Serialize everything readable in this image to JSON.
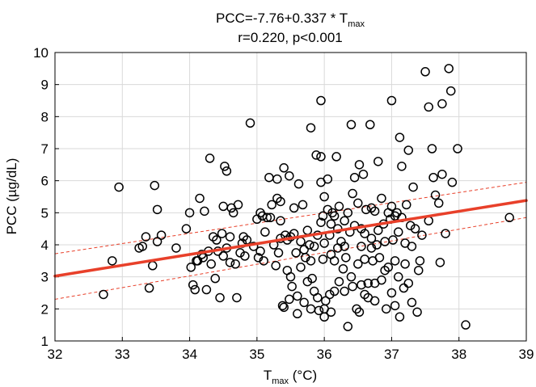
{
  "chart_data": {
    "type": "scatter",
    "title_prefix": "PCC=-7.76+0.337 * T",
    "title_subscript": "max",
    "subtitle": "r=0.220, p<0.001",
    "xlabel_main": "T",
    "xlabel_subscript": "max",
    "xlabel_unit": " (°C)",
    "ylabel": "PCC (µg/dL)",
    "xlim": [
      32,
      39
    ],
    "ylim": [
      1,
      10
    ],
    "xticks": [
      "32",
      "33",
      "34",
      "35",
      "36",
      "37",
      "38",
      "39"
    ],
    "yticks": [
      "1",
      "2",
      "3",
      "4",
      "5",
      "6",
      "7",
      "8",
      "9",
      "10"
    ],
    "grid": true,
    "regression": {
      "intercept": -7.76,
      "slope": 0.337,
      "color": "#e8402a"
    },
    "ci_band": {
      "upper_x": [
        32,
        39
      ],
      "upper_y": [
        3.72,
        5.95
      ],
      "lower_x": [
        32,
        39
      ],
      "lower_y": [
        2.3,
        4.85
      ],
      "color": "#e8402a"
    },
    "marker_color": "#000000",
    "points": [
      [
        32.72,
        2.45
      ],
      [
        32.85,
        3.5
      ],
      [
        32.95,
        5.8
      ],
      [
        33.25,
        3.9
      ],
      [
        33.3,
        3.95
      ],
      [
        33.35,
        4.25
      ],
      [
        33.4,
        2.65
      ],
      [
        33.45,
        3.35
      ],
      [
        33.48,
        5.85
      ],
      [
        33.52,
        4.1
      ],
      [
        33.52,
        5.1
      ],
      [
        33.58,
        4.3
      ],
      [
        33.8,
        3.9
      ],
      [
        33.95,
        4.5
      ],
      [
        34.0,
        5.0
      ],
      [
        34.02,
        3.3
      ],
      [
        34.05,
        2.75
      ],
      [
        34.08,
        2.6
      ],
      [
        34.1,
        3.5
      ],
      [
        34.12,
        3.5
      ],
      [
        34.15,
        5.45
      ],
      [
        34.18,
        3.7
      ],
      [
        34.2,
        3.6
      ],
      [
        34.22,
        5.05
      ],
      [
        34.25,
        2.6
      ],
      [
        34.28,
        3.8
      ],
      [
        34.3,
        6.7
      ],
      [
        34.32,
        3.4
      ],
      [
        34.35,
        4.25
      ],
      [
        34.38,
        2.95
      ],
      [
        34.4,
        4.15
      ],
      [
        34.42,
        3.8
      ],
      [
        34.45,
        2.35
      ],
      [
        34.48,
        4.35
      ],
      [
        34.5,
        3.65
      ],
      [
        34.5,
        5.2
      ],
      [
        34.52,
        6.45
      ],
      [
        34.55,
        6.3
      ],
      [
        34.55,
        3.9
      ],
      [
        34.6,
        4.25
      ],
      [
        34.6,
        3.45
      ],
      [
        34.62,
        5.15
      ],
      [
        34.65,
        5.0
      ],
      [
        34.68,
        3.4
      ],
      [
        34.7,
        2.35
      ],
      [
        34.72,
        5.25
      ],
      [
        34.75,
        3.75
      ],
      [
        34.78,
        4.05
      ],
      [
        34.8,
        4.25
      ],
      [
        34.82,
        3.65
      ],
      [
        34.85,
        4.15
      ],
      [
        34.9,
        7.8
      ],
      [
        34.95,
        3.95
      ],
      [
        35.0,
        4.8
      ],
      [
        35.02,
        3.6
      ],
      [
        35.05,
        5.0
      ],
      [
        35.05,
        3.8
      ],
      [
        35.08,
        4.9
      ],
      [
        35.1,
        3.5
      ],
      [
        35.12,
        4.4
      ],
      [
        35.15,
        4.85
      ],
      [
        35.18,
        6.1
      ],
      [
        35.2,
        4.85
      ],
      [
        35.22,
        5.25
      ],
      [
        35.25,
        4.0
      ],
      [
        35.28,
        3.35
      ],
      [
        35.3,
        6.05
      ],
      [
        35.3,
        5.45
      ],
      [
        35.32,
        3.75
      ],
      [
        35.35,
        5.35
      ],
      [
        35.35,
        4.2
      ],
      [
        35.38,
        2.1
      ],
      [
        35.4,
        6.4
      ],
      [
        35.4,
        2.05
      ],
      [
        35.42,
        4.3
      ],
      [
        35.45,
        4.15
      ],
      [
        35.45,
        3.2
      ],
      [
        35.48,
        6.15
      ],
      [
        35.48,
        2.3
      ],
      [
        35.5,
        4.25
      ],
      [
        35.5,
        3.0
      ],
      [
        35.52,
        2.7
      ],
      [
        35.55,
        4.35
      ],
      [
        35.58,
        3.75
      ],
      [
        35.6,
        1.85
      ],
      [
        35.6,
        2.4
      ],
      [
        35.62,
        5.9
      ],
      [
        35.65,
        4.1
      ],
      [
        35.65,
        3.3
      ],
      [
        35.68,
        5.25
      ],
      [
        35.7,
        3.85
      ],
      [
        35.7,
        2.2
      ],
      [
        35.72,
        3.6
      ],
      [
        35.75,
        4.45
      ],
      [
        35.75,
        2.85
      ],
      [
        35.78,
        4.0
      ],
      [
        35.8,
        2.0
      ],
      [
        35.8,
        3.5
      ],
      [
        35.8,
        7.65
      ],
      [
        35.82,
        2.95
      ],
      [
        35.85,
        3.95
      ],
      [
        35.85,
        2.55
      ],
      [
        35.88,
        6.8
      ],
      [
        35.9,
        4.3
      ],
      [
        35.9,
        2.35
      ],
      [
        35.92,
        1.95
      ],
      [
        35.95,
        8.5
      ],
      [
        35.95,
        6.75
      ],
      [
        35.95,
        5.95
      ],
      [
        35.98,
        4.9
      ],
      [
        35.98,
        3.55
      ],
      [
        36.0,
        5.5
      ],
      [
        36.0,
        2.0
      ],
      [
        36.0,
        1.75
      ],
      [
        36.02,
        2.25
      ],
      [
        36.05,
        6.05
      ],
      [
        36.05,
        5.1
      ],
      [
        36.08,
        4.3
      ],
      [
        36.08,
        2.45
      ],
      [
        36.1,
        3.7
      ],
      [
        36.1,
        1.9
      ],
      [
        36.12,
        5.0
      ],
      [
        36.15,
        4.9
      ],
      [
        36.15,
        3.5
      ],
      [
        36.15,
        2.55
      ],
      [
        36.18,
        6.75
      ],
      [
        36.2,
        4.5
      ],
      [
        36.2,
        3.9
      ],
      [
        36.22,
        5.2
      ],
      [
        36.22,
        2.85
      ],
      [
        36.25,
        4.1
      ],
      [
        36.28,
        3.25
      ],
      [
        36.3,
        4.75
      ],
      [
        36.3,
        2.55
      ],
      [
        36.32,
        3.6
      ],
      [
        36.35,
        5.0
      ],
      [
        36.35,
        1.45
      ],
      [
        36.38,
        4.4
      ],
      [
        36.4,
        7.75
      ],
      [
        36.4,
        3.0
      ],
      [
        36.42,
        2.7
      ],
      [
        36.42,
        5.6
      ],
      [
        36.45,
        6.1
      ],
      [
        36.45,
        4.6
      ],
      [
        36.48,
        2.0
      ],
      [
        36.5,
        5.3
      ],
      [
        36.5,
        3.4
      ],
      [
        36.52,
        6.5
      ],
      [
        36.52,
        1.9
      ],
      [
        36.55,
        4.5
      ],
      [
        36.55,
        2.75
      ],
      [
        36.58,
        6.2
      ],
      [
        36.6,
        4.35
      ],
      [
        36.6,
        3.55
      ],
      [
        36.6,
        2.45
      ],
      [
        36.62,
        5.1
      ],
      [
        36.65,
        2.8
      ],
      [
        36.65,
        2.35
      ],
      [
        36.68,
        7.75
      ],
      [
        36.7,
        4.2
      ],
      [
        36.7,
        3.9
      ],
      [
        36.72,
        3.5
      ],
      [
        36.75,
        5.05
      ],
      [
        36.75,
        2.8
      ],
      [
        36.75,
        2.25
      ],
      [
        36.78,
        4.0
      ],
      [
        36.8,
        6.6
      ],
      [
        36.8,
        4.45
      ],
      [
        36.82,
        3.6
      ],
      [
        36.85,
        5.45
      ],
      [
        36.85,
        2.9
      ],
      [
        36.88,
        4.65
      ],
      [
        36.9,
        4.1
      ],
      [
        36.9,
        3.2
      ],
      [
        36.92,
        2.0
      ],
      [
        36.95,
        5.0
      ],
      [
        36.95,
        3.3
      ],
      [
        36.98,
        4.8
      ],
      [
        37.0,
        8.5
      ],
      [
        37.0,
        5.2
      ],
      [
        37.0,
        2.5
      ],
      [
        37.02,
        4.15
      ],
      [
        37.05,
        3.5
      ],
      [
        37.05,
        2.1
      ],
      [
        37.08,
        5.0
      ],
      [
        37.1,
        4.4
      ],
      [
        37.1,
        3.0
      ],
      [
        37.12,
        7.35
      ],
      [
        37.12,
        1.75
      ],
      [
        37.15,
        6.45
      ],
      [
        37.15,
        4.85
      ],
      [
        37.18,
        2.65
      ],
      [
        37.2,
        4.05
      ],
      [
        37.2,
        3.4
      ],
      [
        37.22,
        5.25
      ],
      [
        37.25,
        6.95
      ],
      [
        37.25,
        2.8
      ],
      [
        37.28,
        4.6
      ],
      [
        37.3,
        3.95
      ],
      [
        37.3,
        2.2
      ],
      [
        37.32,
        5.8
      ],
      [
        37.35,
        4.5
      ],
      [
        37.38,
        1.9
      ],
      [
        37.4,
        3.2
      ],
      [
        37.42,
        3.5
      ],
      [
        37.45,
        4.3
      ],
      [
        37.5,
        9.4
      ],
      [
        37.55,
        8.3
      ],
      [
        37.55,
        4.75
      ],
      [
        37.6,
        7.0
      ],
      [
        37.62,
        6.1
      ],
      [
        37.65,
        5.55
      ],
      [
        37.7,
        5.3
      ],
      [
        37.72,
        3.45
      ],
      [
        37.75,
        8.4
      ],
      [
        37.75,
        6.2
      ],
      [
        37.8,
        4.35
      ],
      [
        37.85,
        9.5
      ],
      [
        37.88,
        8.8
      ],
      [
        37.9,
        5.95
      ],
      [
        37.98,
        7.0
      ],
      [
        38.1,
        1.5
      ],
      [
        38.75,
        4.85
      ],
      [
        37.05,
        4.9
      ],
      [
        36.55,
        3.95
      ],
      [
        35.35,
        4.75
      ],
      [
        36.0,
        4.05
      ],
      [
        36.3,
        3.95
      ],
      [
        35.55,
        5.15
      ],
      [
        36.1,
        4.65
      ],
      [
        36.7,
        5.15
      ],
      [
        35.95,
        4.7
      ]
    ]
  }
}
